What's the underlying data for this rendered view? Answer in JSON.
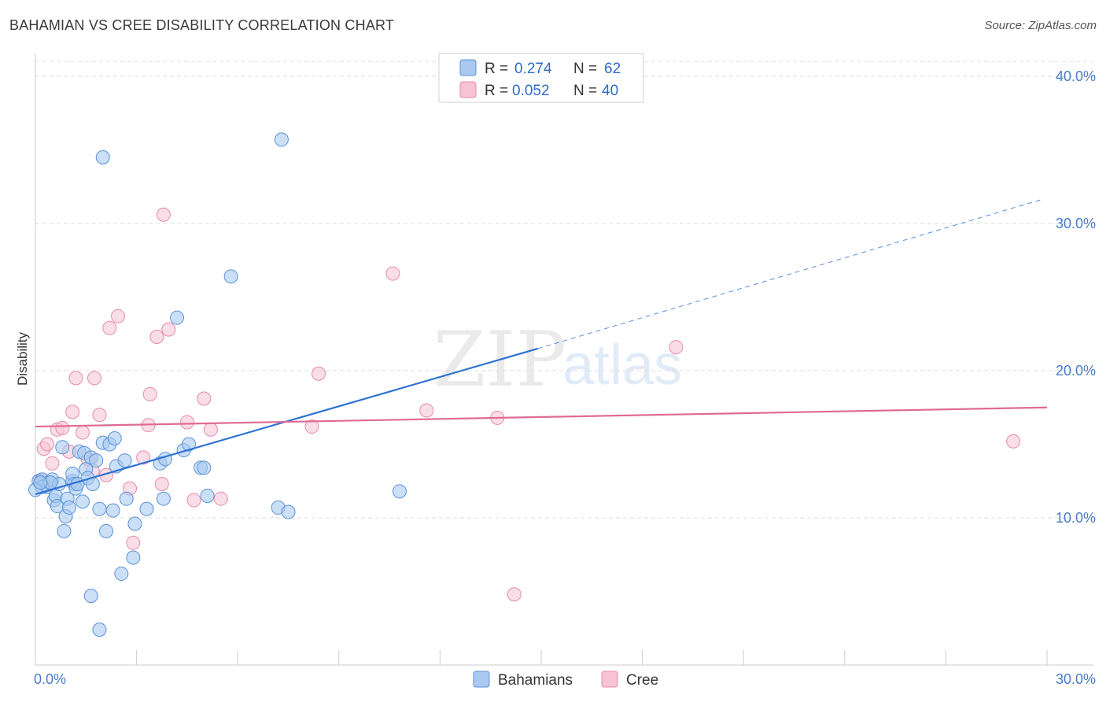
{
  "title": "BAHAMIAN VS CREE DISABILITY CORRELATION CHART",
  "source": "Source: ZipAtlas.com",
  "colors": {
    "blue_fill": "#a9c9f0",
    "blue_stroke": "#5a93d8",
    "blue_line": "#2f73d4",
    "pink_fill": "#f6c3d3",
    "pink_stroke": "#e88aa8",
    "pink_line": "#e06a95",
    "tick_text": "#4a7cc7",
    "grid": "#dddddd"
  },
  "legend": {
    "rows": [
      {
        "r_label": "R =",
        "r_value": "0.274",
        "n_label": "N =",
        "n_value": "62",
        "series": "Bahamians"
      },
      {
        "r_label": "R =",
        "r_value": "0.052",
        "n_label": "N =",
        "n_value": "40",
        "series": "Cree"
      }
    ]
  },
  "watermark": {
    "zip": "ZIP",
    "atlas": "atlas"
  },
  "chart_data": {
    "type": "scatter",
    "title": "BAHAMIAN VS CREE DISABILITY CORRELATION CHART",
    "xlabel": "",
    "ylabel": "Disability",
    "xlim": [
      0,
      30
    ],
    "ylim": [
      0,
      40
    ],
    "x_ticks": [
      0,
      3,
      6,
      9,
      12,
      15,
      18,
      21,
      24,
      27,
      30
    ],
    "x_tick_labels": [
      {
        "value": 0,
        "label": "0.0%"
      },
      {
        "value": 30,
        "label": "30.0%"
      }
    ],
    "y_tick_labels": [
      {
        "value": 10,
        "label": "10.0%"
      },
      {
        "value": 20,
        "label": "20.0%"
      },
      {
        "value": 30,
        "label": "30.0%"
      },
      {
        "value": 40,
        "label": "40.0%"
      }
    ],
    "grid": true,
    "series": [
      {
        "name": "Bahamians",
        "r": 0.274,
        "n": 62,
        "trend": {
          "x0": 0,
          "y0": 11.6,
          "x1": 14.9,
          "y1": 21.5,
          "dashed_to_x": 29.8,
          "dashed_to_y": 31.6
        },
        "points": [
          [
            0.1,
            12.5
          ],
          [
            0.2,
            12.6
          ],
          [
            0.3,
            12.2
          ],
          [
            0.35,
            12.1
          ],
          [
            0.4,
            12.4
          ],
          [
            0.5,
            12.6
          ],
          [
            0.55,
            11.2
          ],
          [
            0.6,
            11.5
          ],
          [
            0.65,
            10.8
          ],
          [
            0.7,
            12.3
          ],
          [
            0.8,
            14.8
          ],
          [
            0.85,
            9.1
          ],
          [
            0.9,
            10.1
          ],
          [
            0.95,
            11.3
          ],
          [
            1.0,
            10.7
          ],
          [
            1.1,
            12.5
          ],
          [
            1.1,
            13.0
          ],
          [
            1.15,
            12.3
          ],
          [
            1.2,
            12.0
          ],
          [
            1.3,
            14.5
          ],
          [
            1.4,
            11.1
          ],
          [
            1.45,
            14.4
          ],
          [
            1.5,
            13.3
          ],
          [
            1.55,
            12.7
          ],
          [
            1.65,
            14.1
          ],
          [
            1.7,
            12.3
          ],
          [
            1.8,
            13.9
          ],
          [
            1.9,
            2.4
          ],
          [
            1.9,
            10.6
          ],
          [
            2.0,
            15.1
          ],
          [
            2.0,
            34.5
          ],
          [
            2.1,
            9.1
          ],
          [
            2.2,
            15.0
          ],
          [
            2.3,
            10.5
          ],
          [
            2.35,
            15.4
          ],
          [
            2.4,
            13.5
          ],
          [
            2.55,
            6.2
          ],
          [
            2.65,
            13.9
          ],
          [
            2.7,
            11.3
          ],
          [
            2.9,
            7.3
          ],
          [
            2.95,
            9.6
          ],
          [
            3.3,
            10.6
          ],
          [
            3.7,
            13.7
          ],
          [
            3.8,
            11.3
          ],
          [
            3.85,
            14.0
          ],
          [
            4.2,
            23.6
          ],
          [
            4.4,
            14.6
          ],
          [
            4.55,
            15.0
          ],
          [
            4.9,
            13.4
          ],
          [
            5.0,
            13.4
          ],
          [
            5.1,
            11.5
          ],
          [
            5.8,
            26.4
          ],
          [
            7.2,
            10.7
          ],
          [
            7.3,
            35.7
          ],
          [
            7.5,
            10.4
          ],
          [
            10.8,
            11.8
          ],
          [
            1.65,
            4.7
          ],
          [
            0.2,
            12.1
          ],
          [
            0.45,
            12.4
          ],
          [
            1.25,
            12.3
          ],
          [
            0.0,
            11.9
          ],
          [
            0.15,
            12.4
          ]
        ]
      },
      {
        "name": "Cree",
        "r": 0.052,
        "n": 40,
        "trend": {
          "x0": 0,
          "y0": 16.2,
          "x1": 30,
          "y1": 17.5
        },
        "points": [
          [
            0.2,
            12.6
          ],
          [
            0.25,
            14.7
          ],
          [
            0.35,
            15.0
          ],
          [
            0.5,
            13.7
          ],
          [
            0.65,
            16.0
          ],
          [
            0.8,
            16.1
          ],
          [
            1.0,
            14.5
          ],
          [
            1.1,
            17.2
          ],
          [
            1.2,
            19.5
          ],
          [
            1.4,
            15.8
          ],
          [
            1.55,
            14.0
          ],
          [
            1.7,
            13.2
          ],
          [
            1.75,
            19.5
          ],
          [
            1.9,
            17.0
          ],
          [
            2.1,
            12.9
          ],
          [
            2.2,
            22.9
          ],
          [
            2.45,
            23.7
          ],
          [
            2.8,
            12.0
          ],
          [
            2.9,
            8.3
          ],
          [
            3.2,
            14.1
          ],
          [
            3.35,
            16.3
          ],
          [
            3.4,
            18.4
          ],
          [
            3.6,
            22.3
          ],
          [
            3.75,
            12.3
          ],
          [
            3.8,
            30.6
          ],
          [
            3.95,
            22.8
          ],
          [
            4.5,
            16.5
          ],
          [
            4.7,
            11.2
          ],
          [
            5.0,
            18.1
          ],
          [
            5.2,
            16.0
          ],
          [
            5.5,
            11.3
          ],
          [
            8.2,
            16.2
          ],
          [
            8.4,
            19.8
          ],
          [
            10.6,
            26.6
          ],
          [
            11.6,
            17.3
          ],
          [
            13.7,
            16.8
          ],
          [
            14.2,
            4.8
          ],
          [
            19.0,
            21.6
          ],
          [
            29.0,
            15.2
          ],
          [
            0.1,
            12.5
          ]
        ]
      }
    ]
  }
}
